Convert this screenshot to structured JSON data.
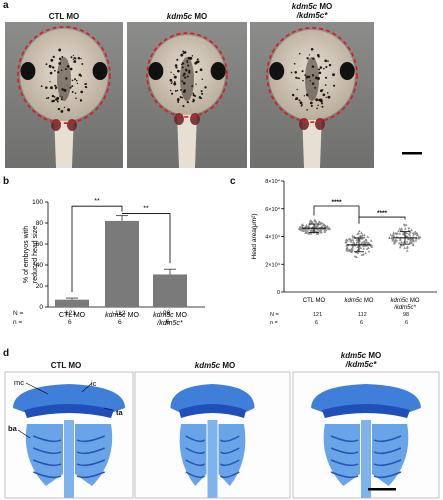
{
  "panel_a": {
    "letter": "a",
    "panels": [
      {
        "gene": "",
        "suffix": "CTL MO",
        "line2": ""
      },
      {
        "gene": "kdm5c",
        "suffix": " MO",
        "line2": ""
      },
      {
        "gene": "kdm5c",
        "suffix": " MO",
        "line2": "/kdm5c*"
      }
    ]
  },
  "panel_b": {
    "letter": "b",
    "sig_left": "**",
    "sig_right": "**",
    "N_label": "N =",
    "n_label": "n =",
    "N_values": [
      "121",
      "112",
      "98"
    ],
    "n_values": [
      "6",
      "6",
      "6"
    ]
  },
  "panel_c": {
    "letter": "c",
    "sig_left": "****",
    "sig_right": "****",
    "N_label": "N =",
    "n_label": "n =",
    "N_values": [
      "121",
      "112",
      "98"
    ],
    "n_values": [
      "6",
      "6",
      "6"
    ]
  },
  "panel_d": {
    "letter": "d",
    "panels": [
      {
        "gene": "",
        "suffix": "CTL MO",
        "line2": ""
      },
      {
        "gene": "kdm5c",
        "suffix": " MO",
        "line2": ""
      },
      {
        "gene": "kdm5c",
        "suffix": " MO",
        "line2": "/kdm5c*"
      }
    ],
    "labels": {
      "mc": "mc",
      "ic": "ic",
      "ta": "ta",
      "ba": "ba"
    }
  },
  "chart_data": [
    {
      "type": "bar",
      "categories": [
        "CTL MO",
        "kdm5c MO",
        "kdm5c MO /kdm5c*"
      ],
      "values": [
        7,
        82,
        31
      ],
      "errors": [
        1.5,
        5,
        5
      ],
      "ylabel": "% of embryos with reduced head size",
      "ylim": [
        0,
        100
      ],
      "yticks": [
        0,
        20,
        40,
        60,
        80,
        100
      ]
    },
    {
      "type": "scatter",
      "categories": [
        "CTL MO",
        "kdm5c MO",
        "kdm5c MO /kdm5c*"
      ],
      "means": [
        4.6,
        3.4,
        3.9
      ],
      "sds": [
        0.3,
        0.5,
        0.45
      ],
      "mins": [
        3.9,
        2.3,
        2.6
      ],
      "maxs": [
        5.3,
        4.7,
        5.0
      ],
      "counts": [
        121,
        112,
        98
      ],
      "ylabel": "Head area(μm²)",
      "ylim": [
        0,
        8
      ],
      "ytick_labels": [
        "0",
        "2×10⁴",
        "4×10⁴",
        "6×10⁴",
        "8×10⁴"
      ],
      "ytick_values": [
        0,
        2,
        4,
        6,
        8
      ]
    }
  ]
}
